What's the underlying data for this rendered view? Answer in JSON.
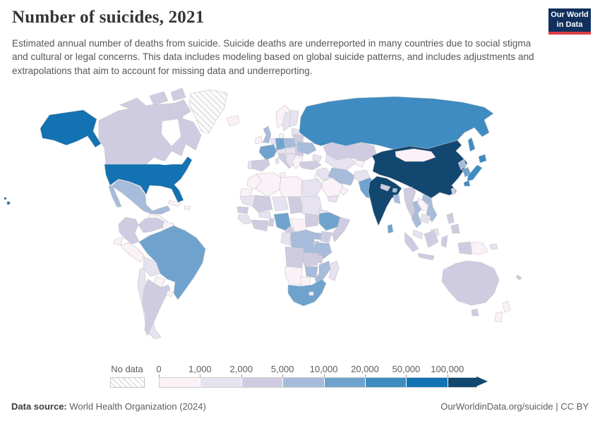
{
  "header": {
    "title": "Number of suicides, 2021",
    "subtitle": "Estimated annual number of deaths from suicide. Suicide deaths are underreported in many countries due to social stigma and cultural or legal concerns. This data includes modeling based on global suicide patterns, and includes adjustments and extrapolations that aim to account for missing data and underreporting.",
    "logo": {
      "line1": "Our World",
      "line2": "in Data",
      "bg_color": "#12305e",
      "accent_color": "#dc3d43"
    }
  },
  "chart_data": {
    "type": "heatmap",
    "subtype": "choropleth-world-map",
    "title": "Number of suicides, 2021",
    "year": "2021",
    "legend": {
      "no_data_label": "No data",
      "tick_labels": [
        "0",
        "1,000",
        "2,000",
        "5,000",
        "10,000",
        "20,000",
        "50,000",
        "100,000"
      ],
      "bin_ranges": [
        "0-1,000",
        "1,000-2,000",
        "2,000-5,000",
        "5,000-10,000",
        "10,000-20,000",
        "20,000-50,000",
        "50,000-100,000",
        "100,000+"
      ],
      "bin_colors": [
        "#fbf2f8",
        "#e6e2f0",
        "#cfcce1",
        "#a7bbda",
        "#6fa3cd",
        "#3e8cc1",
        "#1272b2",
        "#12476f"
      ],
      "no_data_pattern": "diagonal-hatch",
      "position": "bottom-left",
      "arrow_cap": true
    },
    "regions": {
      "usa": 6,
      "canada": 2,
      "greenland": -1,
      "iceland": 0,
      "mexico": 3,
      "central-america": 0,
      "panama-costa-rica": 1,
      "cuba": 0,
      "hispaniola": 0,
      "colombia": 2,
      "venezuela": 2,
      "guyanas": 0,
      "ecuador": 0,
      "peru": 0,
      "brazil": 4,
      "bolivia": 1,
      "paraguay": 0,
      "chile": 1,
      "argentina": 2,
      "uruguay": 0,
      "ireland": 0,
      "uk": 3,
      "norway": 0,
      "sweden": 1,
      "finland": 1,
      "denmark": 0,
      "baltics": 1,
      "poland": 3,
      "germany": 4,
      "benelux": 1,
      "france": 4,
      "spain": 2,
      "portugal": 1,
      "italy": 2,
      "corsica-sardinia": 1,
      "switzerland-austria": 1,
      "czechia-hungary": 1,
      "balkans": 1,
      "romania": 2,
      "greece-bulgaria": 0,
      "belarus": 2,
      "ukraine": 3,
      "russia": 5,
      "kazakhstan": 2,
      "caucasus": 1,
      "central-asia": 1,
      "kyrgyzstan-tajikistan": 0,
      "turkey": 2,
      "syria-iraq": 1,
      "israel-jordan": 0,
      "iran": 3,
      "afghanistan": 1,
      "pakistan": 4,
      "saudi-arabia": 0,
      "yemen": 1,
      "oman": 0,
      "india": 7,
      "nepal": 2,
      "bhutan": 3,
      "bangladesh": 3,
      "sri-lanka": 4,
      "china": 7,
      "mongolia": 0,
      "taiwan": 2,
      "north-korea": 3,
      "south-korea": 4,
      "japan": 5,
      "myanmar": 2,
      "thailand": 3,
      "laos": 0,
      "vietnam": 3,
      "cambodia": 1,
      "malaysia": 1,
      "indonesia": 2,
      "philippines": 2,
      "papua-new-guinea": 0,
      "solomon-islands": 1,
      "australia": 2,
      "new-zealand": 0,
      "new-caledonia": 2,
      "morocco": 0,
      "western-sahara": 0,
      "algeria": 0,
      "tunisia": 0,
      "libya": 0,
      "egypt": 1,
      "mauritania": 1,
      "mali": 2,
      "niger": 1,
      "chad": 2,
      "sudan": 1,
      "eritrea": 1,
      "senegal": 2,
      "guinea": 1,
      "cote-divoire-ghana": 2,
      "burkina-faso": 1,
      "benin-togo": 2,
      "nigeria": 4,
      "cameroon": 2,
      "central-african-republic": 0,
      "south-sudan": 2,
      "ethiopia": 4,
      "somalia": 2,
      "congo-gabon": 1,
      "dr-congo": 3,
      "uganda": 3,
      "kenya": 2,
      "rwanda-burundi": 2,
      "tanzania": 3,
      "angola": 2,
      "zambia": 2,
      "malawi": 2,
      "mozambique": 3,
      "zimbabwe": 3,
      "namibia": 0,
      "botswana": 0,
      "south-africa": 4,
      "lesotho": 0,
      "madagascar": 1
    }
  },
  "footer": {
    "source_label": "Data source:",
    "source_value": " World Health Organization (2024)",
    "link": "OurWorldinData.org/suicide | CC BY"
  }
}
